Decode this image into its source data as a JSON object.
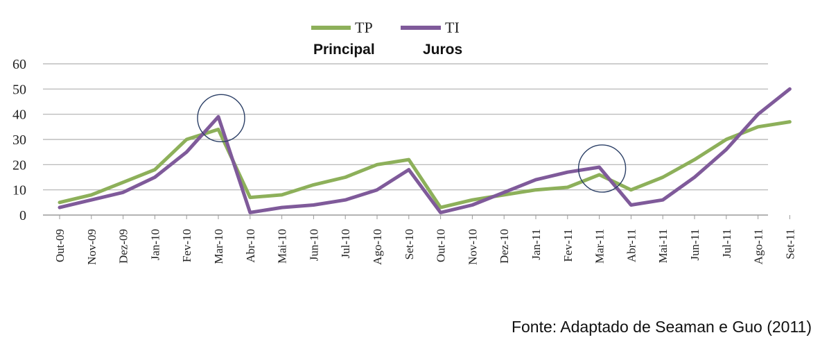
{
  "chart_data": {
    "type": "line",
    "categories": [
      "Out-09",
      "Nov-09",
      "Dez-09",
      "Jan-10",
      "Fev-10",
      "Mar-10",
      "Abr-10",
      "Mai-10",
      "Jun-10",
      "Jul-10",
      "Ago-10",
      "Set-10",
      "Out-10",
      "Nov-10",
      "Dez-10",
      "Jan-11",
      "Fev-11",
      "Mar-11",
      "Abr-11",
      "Mai-11",
      "Jun-11",
      "Jul-11",
      "Ago-11",
      "Set-11"
    ],
    "series": [
      {
        "name": "TP",
        "subtitle": "Principal",
        "color": "#8db05a",
        "values": [
          5,
          8,
          13,
          18,
          30,
          34,
          7,
          8,
          12,
          15,
          20,
          22,
          3,
          6,
          8,
          10,
          11,
          16,
          10,
          15,
          22,
          30,
          35,
          37
        ]
      },
      {
        "name": "TI",
        "subtitle": "Juros",
        "color": "#7f5a9a",
        "values": [
          3,
          6,
          9,
          15,
          25,
          39,
          1,
          3,
          4,
          6,
          10,
          18,
          1,
          4,
          9,
          14,
          17,
          19,
          4,
          6,
          15,
          26,
          40,
          50
        ]
      }
    ],
    "highlights": [
      "Mar-10",
      "Mar-11"
    ],
    "ylim": [
      0,
      60
    ],
    "yticks": [
      0,
      10,
      20,
      30,
      40,
      50,
      60
    ],
    "grid": true,
    "legend_position": "top-center"
  },
  "source": "Fonte: Adaptado de Seaman e Guo (2011)"
}
